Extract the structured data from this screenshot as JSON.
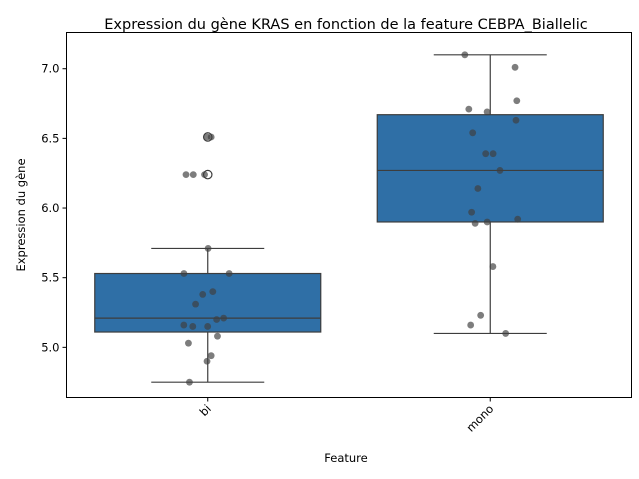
{
  "chart_data": {
    "type": "box",
    "title": "Expression du gène KRAS en fonction de la feature CEBPA_Biallelic",
    "xlabel": "Feature",
    "ylabel": "Expression du gène",
    "categories": [
      "bi",
      "mono"
    ],
    "ylim": [
      4.64,
      7.26
    ],
    "yticks": [
      5.0,
      5.5,
      6.0,
      6.5,
      7.0
    ],
    "ytick_labels": [
      "5.0",
      "5.5",
      "6.0",
      "6.5",
      "7.0"
    ],
    "box_color": "#2f6fa6",
    "point_color": "#404040",
    "grid": false,
    "boxes": [
      {
        "category": "bi",
        "whisker_low": 4.75,
        "q1": 5.11,
        "median": 5.21,
        "q3": 5.53,
        "whisker_high": 5.71,
        "outliers": [
          6.24,
          6.51
        ]
      },
      {
        "category": "mono",
        "whisker_low": 5.1,
        "q1": 5.9,
        "median": 6.27,
        "q3": 6.67,
        "whisker_high": 7.1,
        "outliers": []
      }
    ],
    "points": [
      {
        "category": "bi",
        "values": [
          6.51,
          6.51,
          6.24,
          6.24,
          6.24,
          5.71,
          5.53,
          5.53,
          5.4,
          5.38,
          5.31,
          5.21,
          5.2,
          5.16,
          5.15,
          5.15,
          5.08,
          5.03,
          4.94,
          4.9,
          4.75
        ]
      },
      {
        "category": "mono",
        "values": [
          7.1,
          7.01,
          6.77,
          6.71,
          6.69,
          6.63,
          6.54,
          6.39,
          6.39,
          6.27,
          6.14,
          5.97,
          5.92,
          5.9,
          5.89,
          5.58,
          5.23,
          5.16,
          5.1
        ]
      }
    ]
  }
}
